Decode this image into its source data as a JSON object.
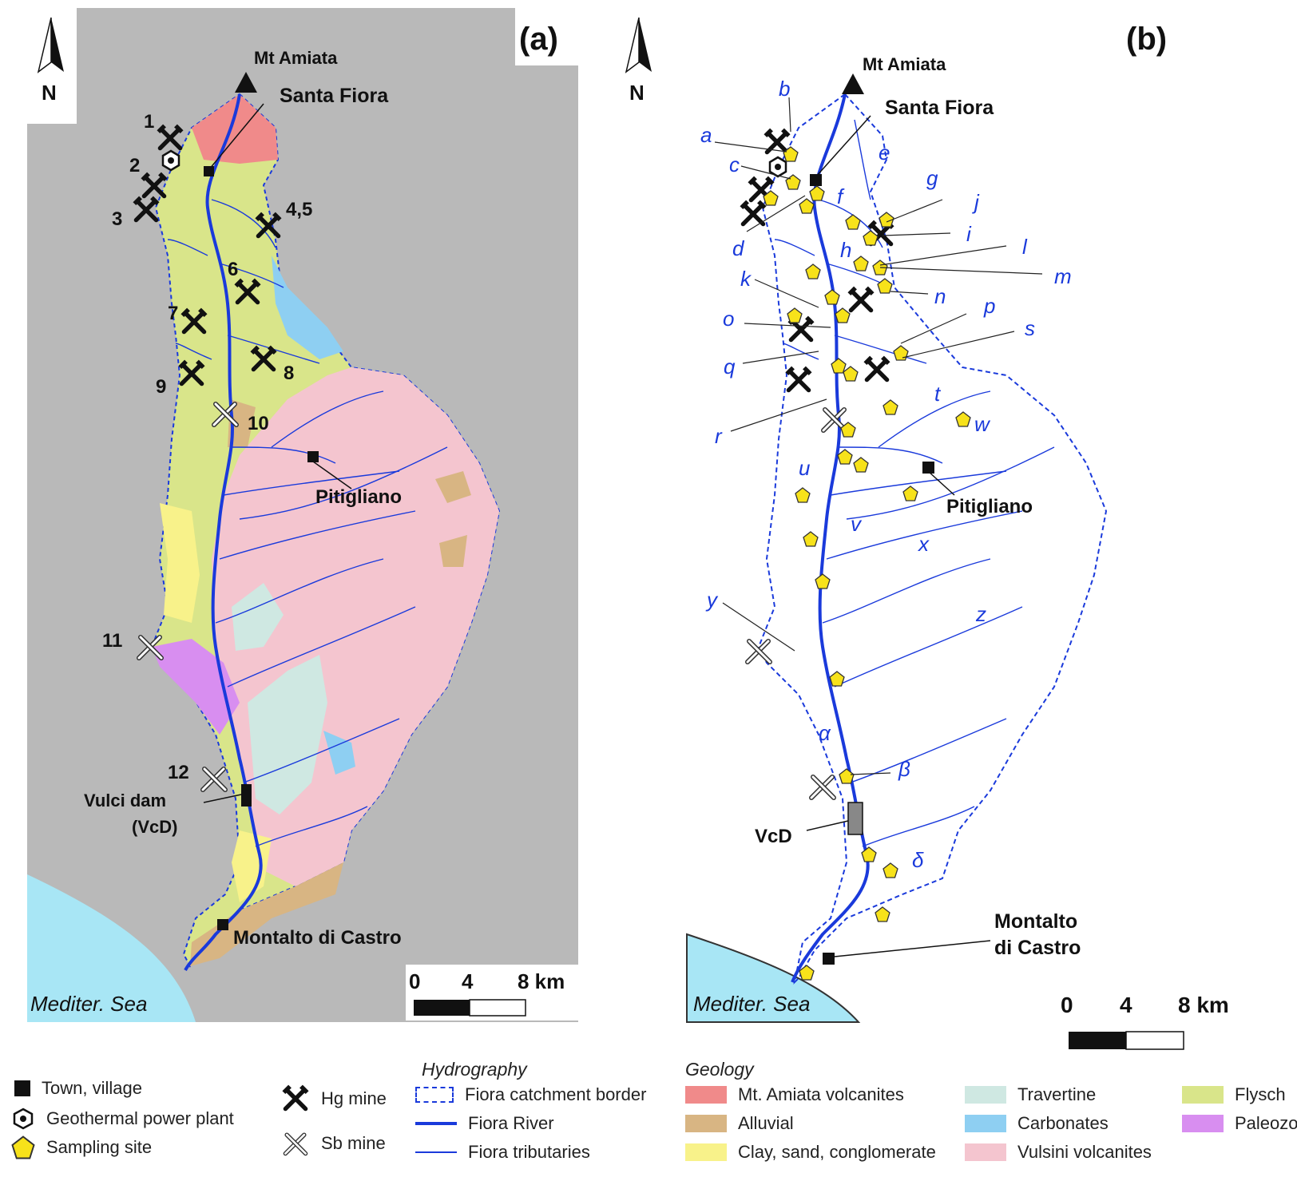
{
  "panel_a": {
    "label": "(a)",
    "north": "N",
    "peak": "Mt Amiata",
    "towns": [
      "Santa Fiora",
      "Pitigliano",
      "Montalto di Castro"
    ],
    "dam": "Vulci dam",
    "dam_abbr": "(VcD)",
    "sea": "Mediter. Sea",
    "mines": [
      "1",
      "2",
      "3",
      "4,5",
      "6",
      "7",
      "8",
      "9",
      "10",
      "11",
      "12"
    ],
    "scale": {
      "t0": "0",
      "t1": "4",
      "t2": "8 km"
    }
  },
  "panel_b": {
    "label": "(b)",
    "north": "N",
    "peak": "Mt Amiata",
    "towns": [
      "Santa Fiora",
      "Pitigliano",
      "Montalto",
      "di Castro"
    ],
    "dam": "VcD",
    "sea": "Mediter. Sea",
    "sites": [
      "a",
      "b",
      "c",
      "d",
      "e",
      "f",
      "g",
      "h",
      "i",
      "j",
      "k",
      "l",
      "m",
      "n",
      "o",
      "p",
      "q",
      "r",
      "s",
      "t",
      "u",
      "v",
      "w",
      "x",
      "y",
      "z",
      "α",
      "β",
      "δ"
    ],
    "scale": {
      "t0": "0",
      "t1": "4",
      "t2": "8 km"
    }
  },
  "legend": {
    "symbols": {
      "town": "Town, village",
      "geothermal": "Geothermal power plant",
      "sampling": "Sampling site",
      "hg": "Hg mine",
      "sb": "Sb mine"
    },
    "hydrography": {
      "title": "Hydrography",
      "border": "Fiora catchment border",
      "river": "Fiora River",
      "tributaries": "Fiora tributaries"
    },
    "geology": {
      "title": "Geology",
      "items": [
        {
          "label": "Mt. Amiata volcanites",
          "color": "#f08a8a"
        },
        {
          "label": "Alluvial",
          "color": "#d8b583"
        },
        {
          "label": "Clay, sand, conglomerate",
          "color": "#f8f28a"
        },
        {
          "label": "Travertine",
          "color": "#cfe8e2"
        },
        {
          "label": "Carbonates",
          "color": "#8ecff2"
        },
        {
          "label": "Vulsini volcanites",
          "color": "#f4c5cf"
        },
        {
          "label": "Flysch",
          "color": "#d9e58a"
        },
        {
          "label": "Paleozoic",
          "color": "#d88ef0"
        }
      ]
    }
  },
  "colors": {
    "river": "#1a3adb",
    "sea": "#a8e6f5",
    "hillshade": "#b9b9b9",
    "site": "#f7e21a"
  }
}
